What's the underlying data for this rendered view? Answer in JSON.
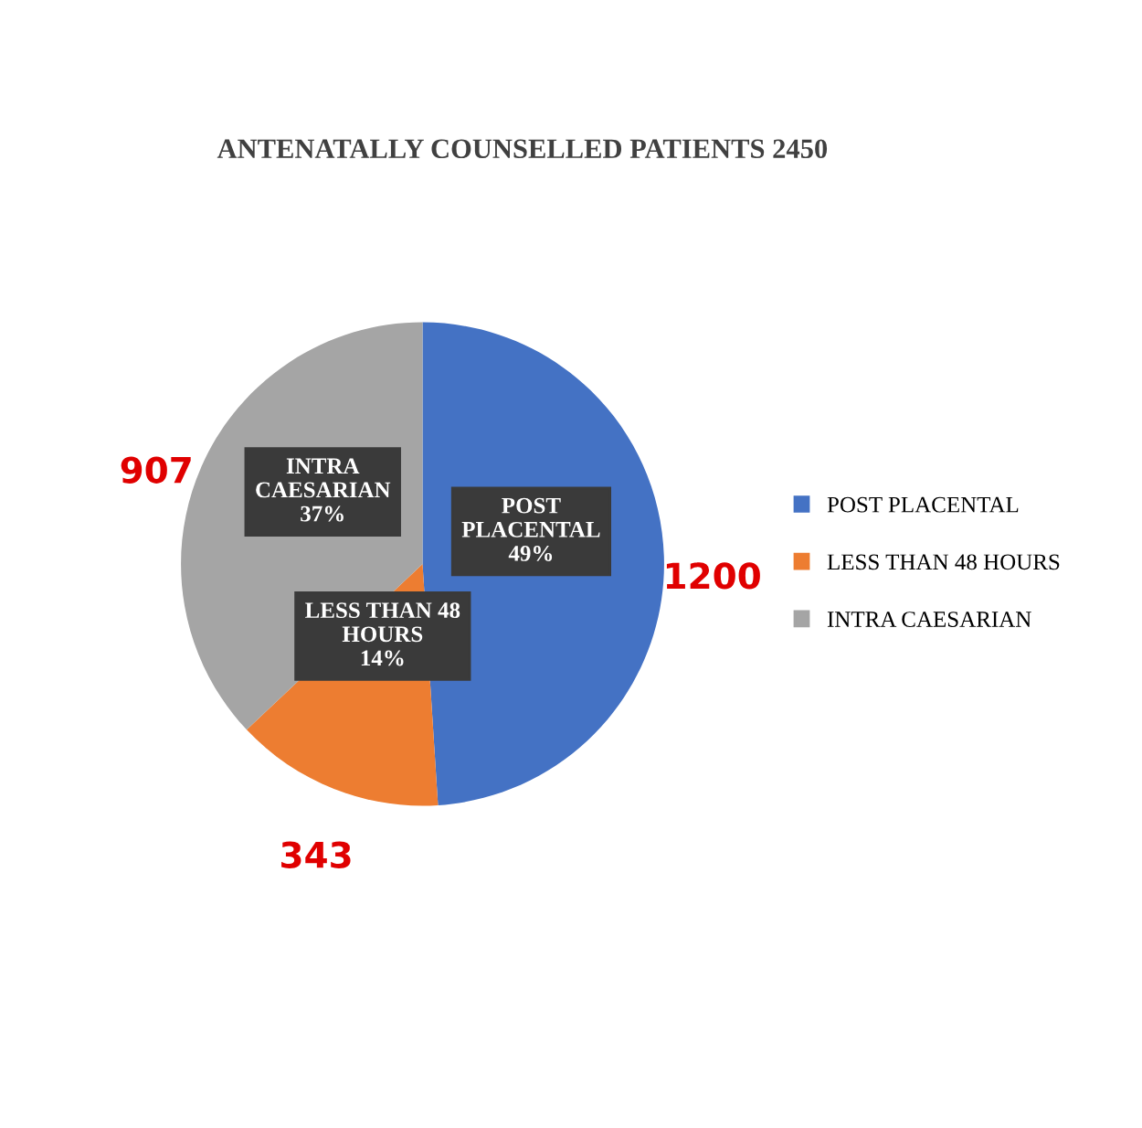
{
  "chart_data": {
    "type": "pie",
    "title": "ANTENATALLY COUNSELLED PATIENTS 2450",
    "categories": [
      "POST PLACENTAL",
      "LESS THAN 48 HOURS",
      "INTRA CAESARIAN"
    ],
    "values": [
      1200,
      343,
      907
    ],
    "colors": [
      "#4472c4",
      "#ed7d31",
      "#a5a5a5"
    ],
    "value_labels": [
      "1200",
      "343",
      "907"
    ],
    "annotations": [
      "POST\nPLACENTAL\n49%",
      "LESS THAN 48\nHOURS\n14%",
      "INTRA\nCAESARIAN\n37%"
    ],
    "legend": "right"
  }
}
